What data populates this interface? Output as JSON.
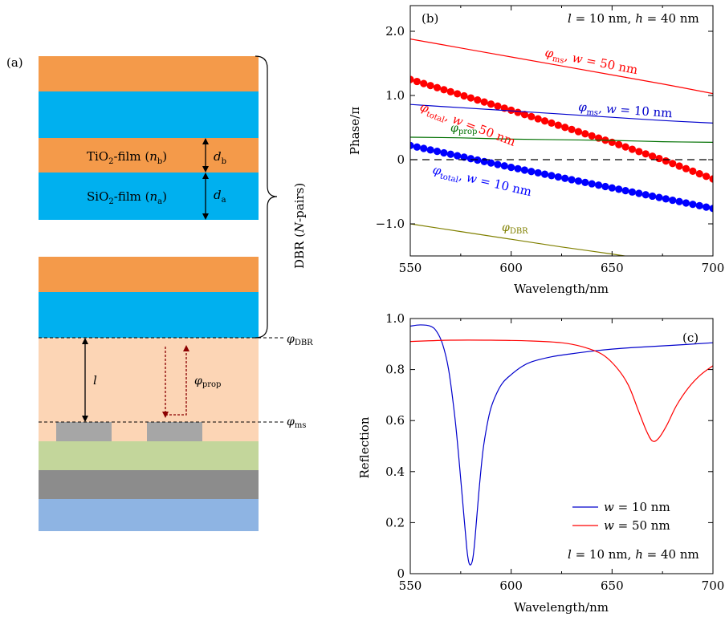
{
  "figure": {
    "panel_a": {
      "label": "(a)",
      "tio2_label": [
        "TiO",
        "2",
        "-film (",
        "n",
        "b",
        ")"
      ],
      "sio2_label": [
        "SiO",
        "2",
        "-film (",
        "n",
        "a",
        ")"
      ],
      "db_label": [
        "d",
        "b"
      ],
      "da_label": [
        "d",
        "a"
      ],
      "dbr_label": [
        "DBR (",
        "N",
        "-pairs)"
      ],
      "l_label": "l",
      "phi_prop": [
        "φ",
        "prop"
      ],
      "phi_dbr": [
        "φ",
        "DBR"
      ],
      "phi_ms": [
        "φ",
        "ms"
      ],
      "colors": {
        "tio2": "#f49a4a",
        "sio2": "#00b0ef",
        "cavity": "#fcd5b5",
        "metasurface": "#a6a6a6",
        "green_layer": "#c3d69b",
        "gray_layer": "#8c8c8c",
        "substrate": "#8eb4e3",
        "prop_arrow": "#8b0000"
      }
    }
  },
  "chart_data": [
    {
      "type": "line",
      "panel_label": "(b)",
      "annotation": [
        "l",
        " = 10 nm, ",
        "h",
        " = 40 nm"
      ],
      "xlabel": "Wavelength/nm",
      "ylabel": "Phase/π",
      "xlim": [
        550,
        700
      ],
      "ylim": [
        -1.5,
        2.4
      ],
      "xticks": [
        550,
        600,
        650,
        700
      ],
      "xtick_labels": [
        "550",
        "600",
        "650",
        "700"
      ],
      "yticks": [
        -1.0,
        0,
        1.0,
        2.0
      ],
      "ytick_labels": [
        "−1.0",
        "0",
        "1.0",
        "2.0"
      ],
      "zero_line": "dashed",
      "series": [
        {
          "name": [
            "φ",
            "ms",
            ", ",
            "w",
            " = 50 nm"
          ],
          "color": "#ff0000",
          "style": "thin",
          "x": [
            550,
            575,
            600,
            625,
            650,
            675,
            700
          ],
          "values": [
            1.88,
            1.74,
            1.6,
            1.46,
            1.32,
            1.18,
            1.03
          ]
        },
        {
          "name": [
            "φ",
            "total",
            ", ",
            "w",
            " = 50 nm"
          ],
          "color": "#ff0000",
          "style": "dots",
          "x": [
            550,
            575,
            600,
            625,
            650,
            675,
            700
          ],
          "values": [
            1.25,
            1.01,
            0.77,
            0.52,
            0.27,
            0.0,
            -0.3
          ]
        },
        {
          "name": [
            "φ",
            "ms",
            ", ",
            "w",
            " = 10 nm"
          ],
          "color": "#0000cc",
          "style": "thin",
          "x": [
            550,
            575,
            600,
            625,
            650,
            675,
            700
          ],
          "values": [
            0.86,
            0.81,
            0.76,
            0.71,
            0.66,
            0.61,
            0.57
          ]
        },
        {
          "name": [
            "φ",
            "prop"
          ],
          "color": "#007000",
          "style": "thin",
          "x": [
            550,
            575,
            600,
            625,
            650,
            675,
            700
          ],
          "values": [
            0.35,
            0.34,
            0.32,
            0.31,
            0.3,
            0.28,
            0.27
          ]
        },
        {
          "name": [
            "φ",
            "total",
            ", ",
            "w",
            " = 10 nm"
          ],
          "color": "#0000ff",
          "style": "dots",
          "x": [
            550,
            575,
            600,
            625,
            650,
            675,
            700
          ],
          "values": [
            0.22,
            0.05,
            -0.12,
            -0.28,
            -0.44,
            -0.6,
            -0.76
          ]
        },
        {
          "name": [
            "φ",
            "DBR"
          ],
          "color": "#808000",
          "style": "thin",
          "x": [
            550,
            575,
            600,
            625,
            650,
            675,
            700
          ],
          "values": [
            -1.0,
            -1.12,
            -1.24,
            -1.36,
            -1.47,
            -1.59,
            -1.7
          ]
        }
      ]
    },
    {
      "type": "line",
      "panel_label": "(c)",
      "annotation": [
        "l",
        " = 10 nm, ",
        "h",
        " = 40 nm"
      ],
      "xlabel": "Wavelength/nm",
      "ylabel": "Reflection",
      "xlim": [
        550,
        700
      ],
      "ylim": [
        0,
        1.0
      ],
      "xticks": [
        550,
        600,
        650,
        700
      ],
      "xtick_labels": [
        "550",
        "600",
        "650",
        "700"
      ],
      "yticks": [
        0,
        0.2,
        0.4,
        0.6,
        0.8,
        1.0
      ],
      "ytick_labels": [
        "0",
        "0.2",
        "0.4",
        "0.6",
        "0.8",
        "1.0"
      ],
      "legend_position": "lower-right",
      "series": [
        {
          "name": [
            "w",
            " = 10 nm"
          ],
          "color": "#0000cc",
          "x": [
            550,
            555,
            560,
            563,
            566,
            569,
            572,
            574,
            576,
            578,
            579,
            580,
            581,
            582,
            584,
            586,
            588,
            590,
            593,
            596,
            600,
            605,
            610,
            620,
            630,
            640,
            650,
            660,
            680,
            700
          ],
          "values": [
            0.97,
            0.975,
            0.97,
            0.95,
            0.9,
            0.8,
            0.62,
            0.46,
            0.28,
            0.1,
            0.045,
            0.035,
            0.06,
            0.13,
            0.32,
            0.48,
            0.58,
            0.65,
            0.71,
            0.75,
            0.78,
            0.81,
            0.83,
            0.85,
            0.862,
            0.872,
            0.88,
            0.886,
            0.895,
            0.905
          ]
        },
        {
          "name": [
            "w",
            " = 50 nm"
          ],
          "color": "#ff0000",
          "x": [
            550,
            570,
            590,
            610,
            625,
            635,
            645,
            652,
            658,
            663,
            667,
            670,
            673,
            677,
            682,
            688,
            694,
            700
          ],
          "values": [
            0.91,
            0.915,
            0.915,
            0.912,
            0.905,
            0.89,
            0.86,
            0.81,
            0.74,
            0.64,
            0.56,
            0.52,
            0.53,
            0.58,
            0.66,
            0.73,
            0.78,
            0.815
          ]
        }
      ]
    }
  ]
}
